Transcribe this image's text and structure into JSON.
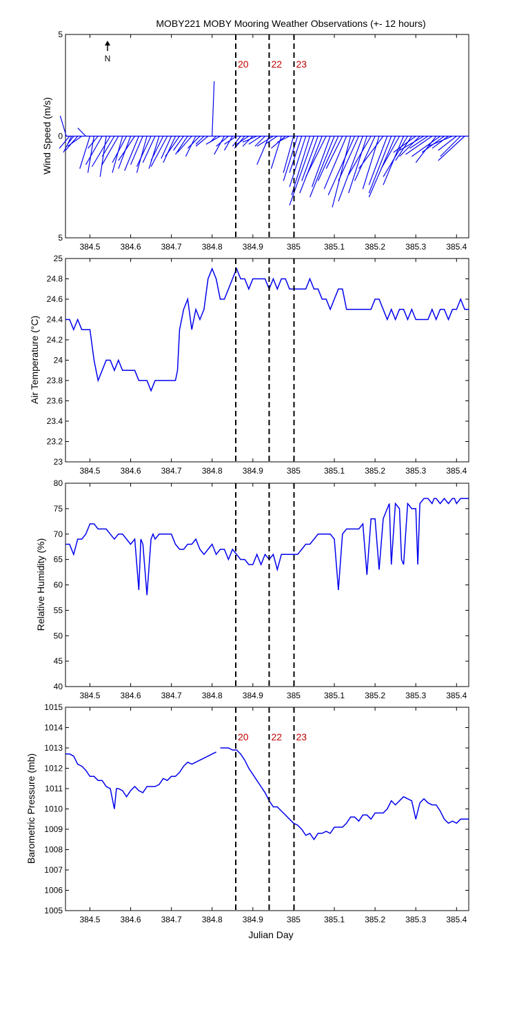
{
  "chart_data": [
    {
      "type": "line",
      "subtype": "wind-stick",
      "title": "MOBY221 MOBY Mooring Weather Observations (+- 12 hours)",
      "ylabel": "Wind Speed (m/s)",
      "xlabel": "",
      "xlim": [
        384.44,
        385.43
      ],
      "ylim": [
        -5,
        5
      ],
      "yticks": [
        "5",
        "0",
        "5"
      ],
      "xticks": [
        "384.5",
        "384.6",
        "384.7",
        "384.8",
        "384.9",
        "385",
        "385.1",
        "385.2",
        "385.3",
        "385.4"
      ],
      "north_label": "N",
      "event_lines": [
        {
          "x": 384.858,
          "label": "20"
        },
        {
          "x": 384.94,
          "label": "22"
        },
        {
          "x": 385.001,
          "label": "23"
        }
      ],
      "wind": {
        "x": [
          384.442,
          384.45,
          384.455,
          384.46,
          384.47,
          384.48,
          384.49,
          384.5,
          384.51,
          384.52,
          384.53,
          384.54,
          384.55,
          384.56,
          384.57,
          384.58,
          384.59,
          384.6,
          384.61,
          384.62,
          384.63,
          384.64,
          384.65,
          384.66,
          384.67,
          384.68,
          384.69,
          384.7,
          384.71,
          384.72,
          384.73,
          384.74,
          384.75,
          384.76,
          384.77,
          384.78,
          384.79,
          384.8,
          384.81,
          384.82,
          384.83,
          384.84,
          384.85,
          384.86,
          384.87,
          384.88,
          384.89,
          384.9,
          384.91,
          384.92,
          384.93,
          384.94,
          384.95,
          384.96,
          384.97,
          384.98,
          384.99,
          385.0,
          385.01,
          385.02,
          385.03,
          385.04,
          385.05,
          385.06,
          385.07,
          385.08,
          385.09,
          385.1,
          385.11,
          385.12,
          385.13,
          385.14,
          385.15,
          385.16,
          385.17,
          385.18,
          385.19,
          385.2,
          385.21,
          385.22,
          385.23,
          385.24,
          385.25,
          385.26,
          385.27,
          385.28,
          385.29,
          385.3,
          385.31,
          385.32,
          385.33,
          385.34,
          385.35,
          385.36,
          385.37,
          385.38,
          385.39,
          385.4,
          385.41,
          385.42
        ],
        "u": [
          -0.3,
          -0.5,
          -0.4,
          -0.3,
          -0.6,
          -0.7,
          -0.4,
          -0.5,
          -0.3,
          -0.5,
          -0.8,
          -0.3,
          -0.9,
          -0.6,
          -0.8,
          -0.5,
          -0.7,
          -0.6,
          -0.8,
          -0.7,
          -0.6,
          -0.5,
          -0.7,
          -0.6,
          -0.5,
          -0.6,
          -0.8,
          -0.5,
          -0.6,
          -0.7,
          -0.5,
          -0.6,
          -0.7,
          -0.5,
          -0.6,
          -0.4,
          -0.6,
          0.1,
          -0.3,
          -0.7,
          -0.5,
          -0.6,
          -0.4,
          -0.6,
          -0.4,
          -0.5,
          -0.6,
          -0.5,
          -0.7,
          -0.6,
          -0.5,
          -0.6,
          -0.8,
          -0.6,
          -0.5,
          -0.7,
          -0.6,
          -0.5,
          -0.7,
          -0.6,
          -0.8,
          -0.9,
          -1.2,
          -0.8,
          -1.1,
          -1.0,
          -0.9,
          -1.2,
          -1.0,
          -0.8,
          -1.1,
          -0.9,
          -1.3,
          -1.0,
          -1.2,
          -0.9,
          -1.1,
          -1.0,
          -0.8,
          -1.2,
          -0.9,
          -1.1,
          -1.3,
          -0.9,
          -1.0,
          -1.2,
          -0.8,
          -1.1,
          -1.0,
          -1.2,
          -0.9,
          -1.3,
          -1.0,
          -1.4,
          -1.1,
          -0.8,
          -1.2,
          -0.9,
          -1.0,
          -1.3
        ],
        "v": [
          1.0,
          -0.6,
          -0.8,
          -0.4,
          -0.7,
          -0.5,
          0.4,
          -1.6,
          -1.8,
          -0.6,
          -1.4,
          -2.0,
          -1.5,
          -1.0,
          -1.4,
          -1.8,
          -1.3,
          -1.6,
          -1.2,
          -1.7,
          -1.4,
          -1.8,
          -1.5,
          -1.3,
          -1.6,
          -1.2,
          -1.5,
          -1.1,
          -1.3,
          -1.0,
          -0.7,
          -0.9,
          -0.8,
          -1.0,
          -0.6,
          -0.4,
          -0.5,
          2.7,
          -0.3,
          -0.4,
          -0.9,
          -0.5,
          -0.7,
          -0.4,
          -0.5,
          -0.6,
          -0.4,
          -0.5,
          -0.3,
          -0.4,
          -0.5,
          -1.4,
          -0.5,
          -0.4,
          -1.6,
          -0.6,
          -0.3,
          -1.8,
          -2.2,
          -1.8,
          -2.5,
          -2.9,
          -3.4,
          -2.2,
          -2.8,
          -2.0,
          -2.5,
          -3.0,
          -2.2,
          -1.6,
          -2.6,
          -3.5,
          -2.9,
          -2.2,
          -3.2,
          -2.8,
          -1.9,
          -2.2,
          -2.6,
          -1.6,
          -2.4,
          -2.8,
          -3.0,
          -1.6,
          -2.4,
          -2.0,
          -1.2,
          -0.8,
          -1.0,
          -0.7,
          -0.6,
          -0.9,
          -1.3,
          -1.0,
          -0.8,
          -0.6,
          -0.5,
          -0.7,
          -1.0,
          -1.2
        ]
      }
    },
    {
      "type": "line",
      "title": "",
      "ylabel": "Air Temperature (°C)",
      "xlabel": "",
      "xlim": [
        384.44,
        385.43
      ],
      "ylim": [
        23,
        25
      ],
      "yticks": [
        "25",
        "24.8",
        "24.6",
        "24.4",
        "24.2",
        "24",
        "23.8",
        "23.6",
        "23.4",
        "23.2",
        "23"
      ],
      "xticks": [
        "384.5",
        "384.6",
        "384.7",
        "384.8",
        "384.9",
        "385",
        "385.1",
        "385.2",
        "385.3",
        "385.4"
      ],
      "event_lines": [
        {
          "x": 384.858,
          "label": ""
        },
        {
          "x": 384.94,
          "label": ""
        },
        {
          "x": 385.001,
          "label": ""
        }
      ],
      "x": [
        384.44,
        384.45,
        384.46,
        384.47,
        384.48,
        384.49,
        384.5,
        384.51,
        384.52,
        384.53,
        384.54,
        384.55,
        384.56,
        384.57,
        384.58,
        384.59,
        384.6,
        384.61,
        384.62,
        384.63,
        384.64,
        384.65,
        384.66,
        384.67,
        384.68,
        384.69,
        384.7,
        384.71,
        384.715,
        384.72,
        384.73,
        384.74,
        384.75,
        384.755,
        384.76,
        384.77,
        384.78,
        384.79,
        384.8,
        384.81,
        384.82,
        384.83,
        384.84,
        384.85,
        384.86,
        384.87,
        384.88,
        384.89,
        384.9,
        384.91,
        384.92,
        384.93,
        384.94,
        384.95,
        384.96,
        384.97,
        384.98,
        384.99,
        385.0,
        385.01,
        385.02,
        385.03,
        385.04,
        385.05,
        385.06,
        385.07,
        385.08,
        385.09,
        385.1,
        385.11,
        385.12,
        385.13,
        385.14,
        385.15,
        385.16,
        385.17,
        385.18,
        385.19,
        385.2,
        385.21,
        385.22,
        385.23,
        385.24,
        385.25,
        385.26,
        385.27,
        385.28,
        385.29,
        385.3,
        385.31,
        385.32,
        385.33,
        385.34,
        385.35,
        385.36,
        385.37,
        385.38,
        385.39,
        385.4,
        385.41,
        385.42,
        385.43
      ],
      "values": [
        24.4,
        24.4,
        24.3,
        24.4,
        24.3,
        24.3,
        24.3,
        24.0,
        23.8,
        23.9,
        24.0,
        24.0,
        23.9,
        24.0,
        23.9,
        23.9,
        23.9,
        23.9,
        23.8,
        23.8,
        23.8,
        23.7,
        23.8,
        23.8,
        23.8,
        23.8,
        23.8,
        23.8,
        23.9,
        24.3,
        24.5,
        24.6,
        24.3,
        24.4,
        24.5,
        24.4,
        24.5,
        24.8,
        24.9,
        24.8,
        24.6,
        24.6,
        24.7,
        24.8,
        24.9,
        24.8,
        24.8,
        24.7,
        24.8,
        24.8,
        24.8,
        24.8,
        24.7,
        24.8,
        24.7,
        24.8,
        24.8,
        24.7,
        24.7,
        24.7,
        24.7,
        24.7,
        24.8,
        24.7,
        24.7,
        24.6,
        24.6,
        24.5,
        24.6,
        24.7,
        24.7,
        24.5,
        24.5,
        24.5,
        24.5,
        24.5,
        24.5,
        24.5,
        24.6,
        24.6,
        24.5,
        24.4,
        24.5,
        24.4,
        24.5,
        24.5,
        24.4,
        24.5,
        24.4,
        24.4,
        24.4,
        24.4,
        24.5,
        24.4,
        24.5,
        24.5,
        24.4,
        24.5,
        24.5,
        24.6,
        24.5,
        24.5
      ]
    },
    {
      "type": "line",
      "title": "",
      "ylabel": "Relative Humidity (%)",
      "xlabel": "",
      "xlim": [
        384.44,
        385.43
      ],
      "ylim": [
        40,
        80
      ],
      "yticks": [
        "80",
        "75",
        "70",
        "65",
        "60",
        "55",
        "50",
        "45",
        "40"
      ],
      "xticks": [
        "384.5",
        "384.6",
        "384.7",
        "384.8",
        "384.9",
        "385",
        "385.1",
        "385.2",
        "385.3",
        "385.4"
      ],
      "event_lines": [
        {
          "x": 384.858,
          "label": ""
        },
        {
          "x": 384.94,
          "label": ""
        },
        {
          "x": 385.001,
          "label": ""
        }
      ],
      "x": [
        384.44,
        384.45,
        384.46,
        384.47,
        384.48,
        384.49,
        384.5,
        384.51,
        384.52,
        384.53,
        384.54,
        384.55,
        384.56,
        384.57,
        384.58,
        384.59,
        384.6,
        384.61,
        384.62,
        384.625,
        384.63,
        384.64,
        384.65,
        384.655,
        384.66,
        384.67,
        384.68,
        384.69,
        384.7,
        384.71,
        384.72,
        384.73,
        384.74,
        384.75,
        384.76,
        384.77,
        384.78,
        384.79,
        384.8,
        384.81,
        384.82,
        384.83,
        384.84,
        384.85,
        384.86,
        384.87,
        384.88,
        384.89,
        384.9,
        384.91,
        384.92,
        384.93,
        384.94,
        384.95,
        384.96,
        384.97,
        384.98,
        384.99,
        385.0,
        385.01,
        385.02,
        385.03,
        385.04,
        385.05,
        385.06,
        385.07,
        385.08,
        385.09,
        385.1,
        385.11,
        385.12,
        385.13,
        385.14,
        385.15,
        385.16,
        385.17,
        385.18,
        385.19,
        385.2,
        385.21,
        385.22,
        385.23,
        385.235,
        385.24,
        385.25,
        385.26,
        385.265,
        385.27,
        385.28,
        385.29,
        385.3,
        385.305,
        385.31,
        385.32,
        385.33,
        385.34,
        385.345,
        385.35,
        385.36,
        385.37,
        385.38,
        385.39,
        385.395,
        385.4,
        385.41,
        385.42,
        385.43
      ],
      "values": [
        68,
        68,
        66,
        69,
        69,
        70,
        72,
        72,
        71,
        71,
        71,
        70,
        69,
        70,
        70,
        69,
        68,
        69,
        59,
        69,
        68,
        58,
        69,
        70,
        69,
        70,
        70,
        70,
        70,
        68,
        67,
        67,
        68,
        68,
        69,
        67,
        66,
        67,
        68,
        66,
        67,
        67,
        65,
        67,
        66,
        65,
        65,
        64,
        64,
        66,
        64,
        66,
        65,
        66,
        63,
        66,
        66,
        66,
        66,
        66,
        67,
        68,
        68,
        69,
        70,
        70,
        70,
        70,
        69,
        59,
        70,
        71,
        71,
        71,
        71,
        72,
        62,
        73,
        73,
        63,
        73,
        75,
        76,
        64,
        76,
        75,
        65,
        64,
        76,
        75,
        75,
        64,
        76,
        77,
        77,
        76,
        77,
        77,
        76,
        77,
        76,
        77,
        77,
        76,
        77,
        77,
        77
      ],
      "values_note": ""
    },
    {
      "type": "line",
      "title": "",
      "ylabel": "Barometric Pressure (mb)",
      "xlabel": "Julian Day",
      "xlim": [
        384.44,
        385.43
      ],
      "ylim": [
        1005,
        1015
      ],
      "yticks": [
        "1015",
        "1014",
        "1013",
        "1012",
        "1011",
        "1010",
        "1009",
        "1008",
        "1007",
        "1006",
        "1005"
      ],
      "xticks": [
        "384.5",
        "384.6",
        "384.7",
        "384.8",
        "384.9",
        "385",
        "385.1",
        "385.2",
        "385.3",
        "385.4"
      ],
      "event_lines": [
        {
          "x": 384.858,
          "label": "20"
        },
        {
          "x": 384.94,
          "label": "22"
        },
        {
          "x": 385.001,
          "label": "23"
        }
      ],
      "segments": [
        {
          "x": [
            384.44,
            384.45,
            384.46,
            384.47,
            384.48,
            384.49,
            384.5,
            384.51,
            384.52,
            384.53,
            384.54,
            384.55,
            384.56,
            384.565,
            384.57,
            384.58,
            384.59,
            384.6,
            384.61,
            384.62,
            384.63,
            384.64,
            384.65,
            384.66,
            384.67,
            384.68,
            384.69,
            384.7,
            384.71,
            384.72,
            384.73,
            384.74,
            384.75,
            384.76,
            384.77,
            384.78,
            384.79,
            384.8,
            384.81
          ],
          "values": [
            1012.7,
            1012.7,
            1012.6,
            1012.2,
            1012.1,
            1011.9,
            1011.6,
            1011.6,
            1011.4,
            1011.4,
            1011.1,
            1011.0,
            1010.0,
            1011.0,
            1011.0,
            1010.9,
            1010.6,
            1010.9,
            1011.1,
            1010.9,
            1010.8,
            1011.1,
            1011.1,
            1011.1,
            1011.2,
            1011.5,
            1011.4,
            1011.6,
            1011.6,
            1011.8,
            1012.1,
            1012.3,
            1012.2,
            1012.3,
            1012.4,
            1012.5,
            1012.6,
            1012.7,
            1012.8
          ]
        },
        {
          "x": [
            384.82,
            384.83,
            384.84,
            384.85,
            384.86,
            384.87,
            384.88,
            384.89,
            384.9,
            384.91,
            384.92,
            384.93,
            384.94,
            384.95,
            384.96,
            384.97,
            384.98,
            384.99,
            385.0,
            385.01,
            385.02,
            385.03,
            385.04,
            385.05,
            385.06,
            385.07,
            385.08,
            385.09,
            385.1,
            385.11,
            385.12,
            385.13,
            385.14,
            385.15,
            385.16,
            385.17,
            385.18,
            385.19,
            385.2,
            385.21,
            385.22,
            385.23,
            385.24,
            385.25,
            385.26,
            385.27,
            385.28,
            385.29,
            385.3,
            385.31,
            385.32,
            385.33,
            385.34,
            385.35,
            385.36,
            385.37,
            385.38,
            385.39,
            385.4,
            385.41,
            385.42,
            385.43
          ],
          "values": [
            1013.0,
            1013.0,
            1013.0,
            1012.9,
            1012.9,
            1012.7,
            1012.4,
            1012.0,
            1011.7,
            1011.4,
            1011.1,
            1010.8,
            1010.4,
            1010.1,
            1010.1,
            1009.9,
            1009.7,
            1009.5,
            1009.3,
            1009.2,
            1009.0,
            1008.7,
            1008.8,
            1008.5,
            1008.8,
            1008.8,
            1008.9,
            1008.8,
            1009.1,
            1009.1,
            1009.1,
            1009.3,
            1009.6,
            1009.6,
            1009.4,
            1009.7,
            1009.7,
            1009.5,
            1009.8,
            1009.8,
            1009.8,
            1010.0,
            1010.4,
            1010.2,
            1010.4,
            1010.6,
            1010.5,
            1010.4,
            1009.5,
            1010.3,
            1010.5,
            1010.3,
            1010.2,
            1010.2,
            1009.9,
            1009.5,
            1009.3,
            1009.4,
            1009.3,
            1009.5,
            1009.5,
            1009.5
          ]
        }
      ]
    }
  ]
}
